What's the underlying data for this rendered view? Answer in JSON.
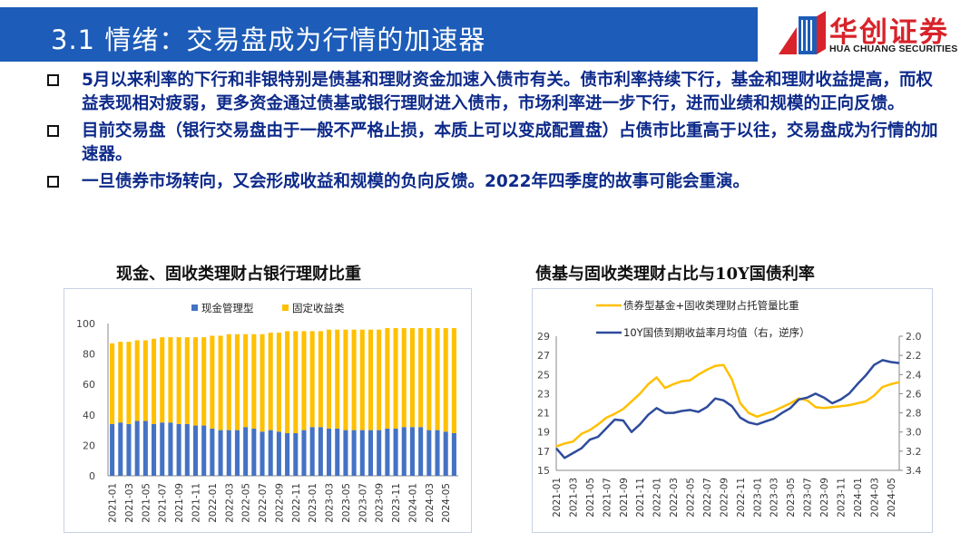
{
  "header": {
    "title": "3.1 情绪：交易盘成为行情的加速器"
  },
  "logo": {
    "cn": "华创证券",
    "en": "HUA CHUANG SECURITIES",
    "brand_red": "#d8232a",
    "brand_blue": "#1d5cb8"
  },
  "bullets": [
    {
      "text": "5月以来利率的下行和非银特别是债基和理财资金加速入债市有关。债市利率持续下行，基金和理财收益提高，而权益表现相对疲弱，更多资金通过债基或银行理财进入债市，市场利率进一步下行，进而业绩和规模的正向反馈。"
    },
    {
      "text": "目前交易盘（银行交易盘由于一般不严格止损，本质上可以变成配置盘）占债市比重高于以往，交易盘成为行情的加速器。"
    },
    {
      "text": "一旦债券市场转向，又会形成收益和规模的负向反馈。2022年四季度的故事可能会重演。"
    }
  ],
  "chart_data": [
    {
      "type": "bar",
      "stacked": true,
      "title": "现金、固收类理财占银行理财比重",
      "legend_position": "top",
      "ylim": [
        0,
        100
      ],
      "yticks": [
        0,
        20,
        40,
        60,
        80,
        100
      ],
      "tick_labels": [
        "2021-01",
        "2021-03",
        "2021-05",
        "2021-07",
        "2021-09",
        "2021-11",
        "2022-01",
        "2022-03",
        "2022-05",
        "2022-07",
        "2022-09",
        "2022-11",
        "2023-01",
        "2023-03",
        "2023-05",
        "2023-07",
        "2023-09",
        "2023-11",
        "2024-01",
        "2024-03",
        "2024-05"
      ],
      "categories": [
        "2021-01",
        "2021-02",
        "2021-03",
        "2021-04",
        "2021-05",
        "2021-06",
        "2021-07",
        "2021-08",
        "2021-09",
        "2021-10",
        "2021-11",
        "2021-12",
        "2022-01",
        "2022-02",
        "2022-03",
        "2022-04",
        "2022-05",
        "2022-06",
        "2022-07",
        "2022-08",
        "2022-09",
        "2022-10",
        "2022-11",
        "2022-12",
        "2023-01",
        "2023-02",
        "2023-03",
        "2023-04",
        "2023-05",
        "2023-06",
        "2023-07",
        "2023-08",
        "2023-09",
        "2023-10",
        "2023-11",
        "2023-12",
        "2024-01",
        "2024-02",
        "2024-03",
        "2024-04",
        "2024-05",
        "2024-06"
      ],
      "series": [
        {
          "name": "现金管理型",
          "color": "#4472c4",
          "values": [
            34,
            35,
            34,
            36,
            36,
            34,
            35,
            35,
            34,
            34,
            33,
            33,
            31,
            30,
            30,
            30,
            32,
            31,
            29,
            30,
            29,
            28,
            28,
            30,
            32,
            32,
            31,
            31,
            30,
            30,
            30,
            30,
            30,
            31,
            31,
            32,
            32,
            32,
            30,
            30,
            29,
            28
          ]
        },
        {
          "name": "固定收益类",
          "color": "#ffc000",
          "values": [
            53,
            53,
            54,
            53,
            53,
            56,
            56,
            56,
            57,
            57,
            58,
            58,
            61,
            62,
            63,
            63,
            61,
            62,
            64,
            64,
            65,
            67,
            67,
            65,
            63,
            63,
            65,
            65,
            66,
            66,
            66,
            66,
            66,
            66,
            66,
            65,
            65,
            65,
            67,
            67,
            68,
            69
          ]
        }
      ]
    },
    {
      "type": "line",
      "title": "债基与固收类理财占比与10Y国债利率",
      "legend_position": "top-left",
      "tick_labels": [
        "2021-01",
        "2021-03",
        "2021-05",
        "2021-07",
        "2021-09",
        "2021-11",
        "2022-01",
        "2022-03",
        "2022-05",
        "2022-07",
        "2022-09",
        "2022-11",
        "2023-01",
        "2023-03",
        "2023-05",
        "2023-07",
        "2023-09",
        "2023-11",
        "2024-01",
        "2024-03",
        "2024-05"
      ],
      "left_axis": {
        "ylim": [
          15,
          29
        ],
        "ticks": [
          15,
          17,
          19,
          21,
          23,
          25,
          27,
          29
        ]
      },
      "right_axis": {
        "ylim": [
          2.0,
          3.4
        ],
        "inverted": true,
        "ticks": [
          2.0,
          2.2,
          2.4,
          2.6,
          2.8,
          3.0,
          3.2,
          3.4
        ]
      },
      "series": [
        {
          "name": "债券型基金+固收类理财占托管量比重",
          "axis": "left",
          "color": "#ffc000",
          "x": [
            "2021-01",
            "2021-02",
            "2021-03",
            "2021-04",
            "2021-05",
            "2021-06",
            "2021-07",
            "2021-08",
            "2021-09",
            "2021-10",
            "2021-11",
            "2021-12",
            "2022-01",
            "2022-02",
            "2022-03",
            "2022-04",
            "2022-05",
            "2022-06",
            "2022-07",
            "2022-08",
            "2022-09",
            "2022-10",
            "2022-11",
            "2022-12",
            "2023-01",
            "2023-02",
            "2023-03",
            "2023-04",
            "2023-05",
            "2023-06",
            "2023-07",
            "2023-08",
            "2023-09",
            "2023-10",
            "2023-11",
            "2023-12",
            "2024-01",
            "2024-02",
            "2024-03",
            "2024-04",
            "2024-05",
            "2024-06"
          ],
          "values": [
            17.5,
            17.8,
            18.0,
            18.8,
            19.2,
            19.8,
            20.5,
            20.9,
            21.4,
            22.2,
            23.0,
            24.0,
            24.7,
            23.6,
            24.0,
            24.3,
            24.4,
            25.0,
            25.5,
            25.9,
            26.0,
            24.5,
            22.0,
            21.0,
            20.6,
            20.9,
            21.2,
            21.6,
            22.0,
            22.5,
            22.3,
            21.6,
            21.5,
            21.6,
            21.7,
            21.8,
            22.0,
            22.2,
            22.8,
            23.7,
            24.0,
            24.2
          ]
        },
        {
          "name": "10Y国债到期收益率月均值（右，逆序）",
          "axis": "right",
          "color": "#2e4b9c",
          "x": [
            "2021-01",
            "2021-02",
            "2021-03",
            "2021-04",
            "2021-05",
            "2021-06",
            "2021-07",
            "2021-08",
            "2021-09",
            "2021-10",
            "2021-11",
            "2021-12",
            "2022-01",
            "2022-02",
            "2022-03",
            "2022-04",
            "2022-05",
            "2022-06",
            "2022-07",
            "2022-08",
            "2022-09",
            "2022-10",
            "2022-11",
            "2022-12",
            "2023-01",
            "2023-02",
            "2023-03",
            "2023-04",
            "2023-05",
            "2023-06",
            "2023-07",
            "2023-08",
            "2023-09",
            "2023-10",
            "2023-11",
            "2023-12",
            "2024-01",
            "2024-02",
            "2024-03",
            "2024-04",
            "2024-05",
            "2024-06"
          ],
          "values": [
            3.17,
            3.27,
            3.22,
            3.17,
            3.08,
            3.05,
            2.96,
            2.87,
            2.88,
            3.0,
            2.92,
            2.82,
            2.75,
            2.8,
            2.8,
            2.78,
            2.77,
            2.79,
            2.74,
            2.65,
            2.67,
            2.73,
            2.85,
            2.9,
            2.92,
            2.89,
            2.86,
            2.8,
            2.75,
            2.66,
            2.64,
            2.6,
            2.64,
            2.7,
            2.66,
            2.6,
            2.5,
            2.41,
            2.3,
            2.25,
            2.27,
            2.28
          ]
        }
      ]
    }
  ]
}
